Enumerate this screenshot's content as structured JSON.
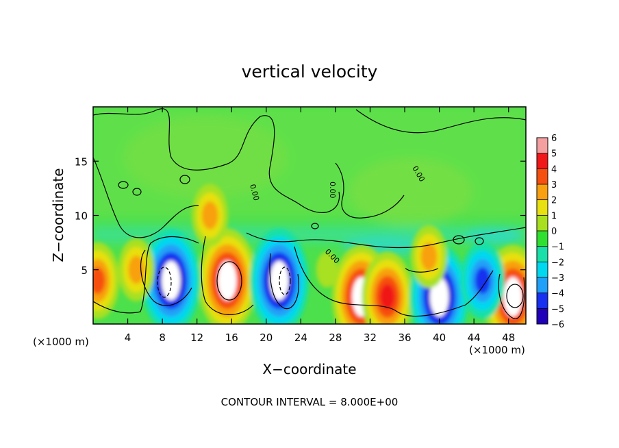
{
  "chart_data": {
    "type": "heatmap",
    "title": "vertical velocity",
    "xlabel": "X−coordinate",
    "ylabel": "Z−coordinate",
    "x_unit_left": "(×1000 m)",
    "x_unit_right": "(×1000 m)",
    "footer": "CONTOUR INTERVAL = 8.000E+00",
    "xlim": [
      0,
      50
    ],
    "ylim": [
      0,
      20
    ],
    "xticks": [
      4,
      8,
      12,
      16,
      20,
      24,
      28,
      32,
      36,
      40,
      44,
      48
    ],
    "yticks": [
      5,
      10,
      15
    ],
    "grid": false,
    "colorbar": {
      "range": [
        -6,
        6
      ],
      "tick_labels": [
        "6",
        "5",
        "4",
        "3",
        "2",
        "1",
        "0",
        "−1",
        "−2",
        "−3",
        "−4",
        "−5",
        "−6"
      ],
      "tick_values": [
        6,
        5,
        4,
        3,
        2,
        1,
        0,
        -1,
        -2,
        -3,
        -4,
        -5,
        -6
      ],
      "colors": [
        "#f4a0a0",
        "#f01818",
        "#f65010",
        "#f8a010",
        "#e8e010",
        "#a8e020",
        "#30e030",
        "#18e0a8",
        "#00d8f0",
        "#20a0f8",
        "#1830f0",
        "#2000b8",
        "#7000b8"
      ]
    },
    "features": [
      {
        "kind": "updraft",
        "x": 15.5,
        "z": 4,
        "peak": 6
      },
      {
        "kind": "downdraft",
        "x": 9,
        "z": 4,
        "peak": -6
      },
      {
        "kind": "downdraft",
        "x": 21.5,
        "z": 4,
        "peak": -6
      },
      {
        "kind": "updraft",
        "x": 31,
        "z": 2.5,
        "peak": 6
      },
      {
        "kind": "updraft",
        "x": 34,
        "z": 2.5,
        "peak": 5
      },
      {
        "kind": "downdraft",
        "x": 40,
        "z": 2.5,
        "peak": -6
      },
      {
        "kind": "updraft",
        "x": 48.5,
        "z": 2.5,
        "peak": 6
      },
      {
        "kind": "updraft",
        "x": 0.5,
        "z": 4,
        "peak": 4
      },
      {
        "kind": "updraft",
        "x": 5,
        "z": 5,
        "peak": 3
      },
      {
        "kind": "updraft",
        "x": 38.8,
        "z": 6.2,
        "peak": 3
      },
      {
        "kind": "downdraft",
        "x": 45,
        "z": 4,
        "peak": -4
      },
      {
        "kind": "updraft",
        "x": 13.5,
        "z": 10,
        "peak": 3
      },
      {
        "kind": "updraft",
        "x": 27,
        "z": 5,
        "peak": 1
      }
    ],
    "contour_labels": [
      "0.00",
      "0.00",
      "0.00",
      "0.00"
    ]
  }
}
